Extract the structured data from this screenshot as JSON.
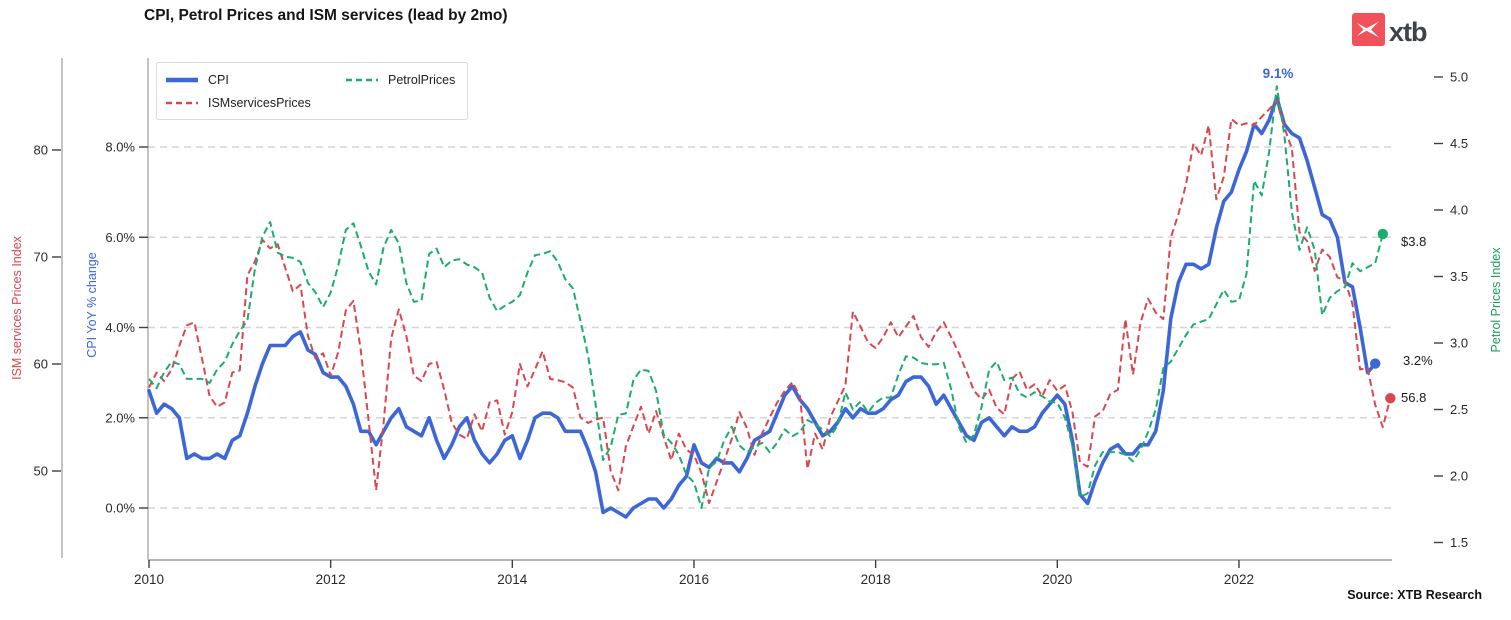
{
  "title": "CPI, Petrol Prices and ISM services (lead by 2mo)",
  "logo": {
    "text": "xtb",
    "icon": "xtb-x-icon",
    "icon_color": "#f0515a",
    "text_color": "#3f424a"
  },
  "source": "Source: XTB Research",
  "legend": {
    "items": [
      {
        "label": "CPI",
        "series": 0
      },
      {
        "label": "PetrolPrices",
        "series": 2
      },
      {
        "label": "ISMservicesPrices",
        "series": 1
      }
    ]
  },
  "annotations": [
    {
      "text": "9.1%",
      "color": "#3d67d6",
      "meaning": "CPI peak Jun 2022"
    },
    {
      "text": "$3.8",
      "color": "#1a1a1a",
      "meaning": "last PetrolPrices value"
    },
    {
      "text": "3.2%",
      "color": "#1a1a1a",
      "meaning": "last CPI value"
    },
    {
      "text": "56.8",
      "color": "#1a1a1a",
      "meaning": "last ISMservicesPrices value"
    }
  ],
  "chart_data": {
    "type": "line",
    "title": "CPI, Petrol Prices and ISM services (lead by 2mo)",
    "grid": "horizontal-dashed",
    "legend_position": "top-left-inside",
    "x_ticks": [
      {
        "label": "2010",
        "value": 2010
      },
      {
        "label": "2012",
        "value": 2012
      },
      {
        "label": "2014",
        "value": 2014
      },
      {
        "label": "2016",
        "value": 2016
      },
      {
        "label": "2018",
        "value": 2018
      },
      {
        "label": "2020",
        "value": 2020
      },
      {
        "label": "2022",
        "value": 2022
      }
    ],
    "x_range": [
      2010.0,
      2023.7
    ],
    "axes": {
      "ism": {
        "title": "ISM services Prices Index",
        "side": "left-outer",
        "color": "#d9474f",
        "ticks": [
          {
            "label": "80",
            "value": 80
          },
          {
            "label": "70",
            "value": 70
          },
          {
            "label": "60",
            "value": 60
          },
          {
            "label": "50",
            "value": 50
          }
        ],
        "range": [
          41.5,
          88.5
        ]
      },
      "cpi": {
        "title": "CPI YoY % change",
        "side": "left-inner",
        "color": "#3d67d6",
        "ticks": [
          {
            "label": "8.0%",
            "value": 8
          },
          {
            "label": "6.0%",
            "value": 6
          },
          {
            "label": "4.0%",
            "value": 4
          },
          {
            "label": "2.0%",
            "value": 2
          },
          {
            "label": "0.0%",
            "value": 0
          }
        ],
        "range": [
          -1.15,
          9.95
        ],
        "gridline_values": [
          0,
          2,
          4,
          6,
          8
        ]
      },
      "petrol": {
        "title": "Petrol Prices Index",
        "side": "right",
        "color": "#1a9e5f",
        "ticks": [
          {
            "label": "5.0",
            "value": 5.0
          },
          {
            "label": "4.5",
            "value": 4.5
          },
          {
            "label": "4.0",
            "value": 4.0
          },
          {
            "label": "3.5",
            "value": 3.5
          },
          {
            "label": "3.0",
            "value": 3.0
          },
          {
            "label": "2.5",
            "value": 2.5
          },
          {
            "label": "2.0",
            "value": 2.0
          },
          {
            "label": "1.5",
            "value": 1.5
          }
        ],
        "range": [
          1.37,
          5.14
        ]
      }
    },
    "series": [
      {
        "name": "CPI",
        "axis": "cpi",
        "color": "#3d67d6",
        "style": "solid",
        "width": 3.6,
        "end_dot": true,
        "start_year": 2010,
        "start_month": 1,
        "step_months": 1,
        "values": [
          2.6,
          2.1,
          2.3,
          2.2,
          2.0,
          1.1,
          1.2,
          1.1,
          1.1,
          1.2,
          1.1,
          1.5,
          1.6,
          2.1,
          2.7,
          3.2,
          3.6,
          3.6,
          3.6,
          3.8,
          3.9,
          3.5,
          3.4,
          3.0,
          2.9,
          2.9,
          2.7,
          2.3,
          1.7,
          1.7,
          1.4,
          1.7,
          2.0,
          2.2,
          1.8,
          1.7,
          1.6,
          2.0,
          1.5,
          1.1,
          1.4,
          1.8,
          2.0,
          1.5,
          1.2,
          1.0,
          1.2,
          1.5,
          1.6,
          1.1,
          1.5,
          2.0,
          2.1,
          2.1,
          2.0,
          1.7,
          1.7,
          1.7,
          1.3,
          0.8,
          -0.1,
          0.0,
          -0.1,
          -0.2,
          0.0,
          0.1,
          0.2,
          0.2,
          0.0,
          0.2,
          0.5,
          0.7,
          1.4,
          1.0,
          0.9,
          1.1,
          1.0,
          1.0,
          0.8,
          1.1,
          1.5,
          1.6,
          1.7,
          2.1,
          2.5,
          2.7,
          2.4,
          2.2,
          1.9,
          1.6,
          1.7,
          1.9,
          2.2,
          2.0,
          2.2,
          2.1,
          2.1,
          2.2,
          2.4,
          2.5,
          2.8,
          2.9,
          2.9,
          2.7,
          2.3,
          2.5,
          2.2,
          1.9,
          1.6,
          1.5,
          1.9,
          2.0,
          1.8,
          1.6,
          1.8,
          1.7,
          1.7,
          1.8,
          2.1,
          2.3,
          2.5,
          2.3,
          1.5,
          0.3,
          0.1,
          0.6,
          1.0,
          1.3,
          1.4,
          1.2,
          1.2,
          1.4,
          1.4,
          1.7,
          2.6,
          4.2,
          5.0,
          5.4,
          5.4,
          5.3,
          5.4,
          6.2,
          6.8,
          7.0,
          7.5,
          7.9,
          8.5,
          8.3,
          8.6,
          9.1,
          8.5,
          8.3,
          8.2,
          7.7,
          7.1,
          6.5,
          6.4,
          6.0,
          5.0,
          4.9,
          4.0,
          3.0,
          3.2
        ]
      },
      {
        "name": "ISMservicesPrices",
        "axis": "ism",
        "color": "#d9474f",
        "style": "dashed",
        "width": 2,
        "lead_months": 2,
        "end_dot": true,
        "start_year": 2010,
        "start_month": 1,
        "step_months": 1,
        "values": [
          57.8,
          59.2,
          58.4,
          59.5,
          61.7,
          63.6,
          63.9,
          60.5,
          57.0,
          56.0,
          56.4,
          59.2,
          59.4,
          68.3,
          69.6,
          71.6,
          70.8,
          71.2,
          69.0,
          66.8,
          67.4,
          62.6,
          60.5,
          61.0,
          58.9,
          61.1,
          65.0,
          65.9,
          61.2,
          54.8,
          48.2,
          54.5,
          62.4,
          65.1,
          62.6,
          58.9,
          58.4,
          60.0,
          60.2,
          57.6,
          54.5,
          53.4,
          53.0,
          55.3,
          53.7,
          56.4,
          56.6,
          53.4,
          55.5,
          60.0,
          57.9,
          59.5,
          61.2,
          58.6,
          58.5,
          58.3,
          57.8,
          55.0,
          54.5,
          54.8,
          55.0,
          50.0,
          48.2,
          52.3,
          54.2,
          56.0,
          53.5,
          55.6,
          53.2,
          51.0,
          53.5,
          52.0,
          51.5,
          49.8,
          47.0,
          49.0,
          51.0,
          53.0,
          55.5,
          54.0,
          51.5,
          53.5,
          55.0,
          56.4,
          57.5,
          58.3,
          57.0,
          50.2,
          53.5,
          52.0,
          55.0,
          56.5,
          58.0,
          64.9,
          63.5,
          62.0,
          61.5,
          62.5,
          63.9,
          62.5,
          63.5,
          64.5,
          62.5,
          61.6,
          63.0,
          63.9,
          62.5,
          61.0,
          59.3,
          57.5,
          56.7,
          57.6,
          55.9,
          55.3,
          58.6,
          59.3,
          57.6,
          58.1,
          57.0,
          58.5,
          57.5,
          58.0,
          55.5,
          50.8,
          50.4,
          55.1,
          55.6,
          57.2,
          57.6,
          64.2,
          59.0,
          63.9,
          66.1,
          64.8,
          64.2,
          71.8,
          74.0,
          76.8,
          80.6,
          79.5,
          82.3,
          75.4,
          77.5,
          82.9,
          82.3,
          82.5,
          82.3,
          83.1,
          83.8,
          84.6,
          82.1,
          80.1,
          72.3,
          71.5,
          68.7,
          70.7,
          70.0,
          68.1,
          67.8,
          65.6,
          59.5,
          59.6,
          56.2,
          54.1,
          56.8
        ]
      },
      {
        "name": "PetrolPrices",
        "axis": "petrol",
        "color": "#1bad6d",
        "style": "dashed",
        "width": 2,
        "end_dot": true,
        "start_year": 2010,
        "start_month": 1,
        "step_months": 1,
        "values": [
          2.73,
          2.66,
          2.78,
          2.86,
          2.84,
          2.73,
          2.73,
          2.73,
          2.7,
          2.8,
          2.86,
          2.99,
          3.09,
          3.17,
          3.56,
          3.8,
          3.91,
          3.68,
          3.65,
          3.64,
          3.61,
          3.45,
          3.38,
          3.27,
          3.38,
          3.58,
          3.85,
          3.9,
          3.73,
          3.54,
          3.44,
          3.72,
          3.85,
          3.75,
          3.45,
          3.31,
          3.32,
          3.67,
          3.71,
          3.57,
          3.62,
          3.63,
          3.59,
          3.57,
          3.53,
          3.34,
          3.24,
          3.28,
          3.31,
          3.36,
          3.53,
          3.66,
          3.67,
          3.69,
          3.61,
          3.48,
          3.41,
          3.17,
          2.91,
          2.54,
          2.12,
          2.22,
          2.46,
          2.47,
          2.72,
          2.8,
          2.79,
          2.64,
          2.31,
          2.25,
          2.16,
          2.01,
          1.95,
          1.76,
          2.06,
          2.11,
          2.27,
          2.37,
          2.23,
          2.18,
          2.22,
          2.25,
          2.18,
          2.25,
          2.35,
          2.3,
          2.33,
          2.42,
          2.39,
          2.35,
          2.3,
          2.38,
          2.63,
          2.5,
          2.56,
          2.48,
          2.55,
          2.59,
          2.59,
          2.76,
          2.9,
          2.89,
          2.85,
          2.84,
          2.84,
          2.85,
          2.65,
          2.37,
          2.25,
          2.31,
          2.52,
          2.8,
          2.86,
          2.72,
          2.74,
          2.62,
          2.59,
          2.63,
          2.6,
          2.56,
          2.55,
          2.44,
          2.23,
          1.84,
          1.87,
          2.08,
          2.18,
          2.18,
          2.18,
          2.16,
          2.11,
          2.2,
          2.33,
          2.5,
          2.81,
          2.86,
          2.96,
          3.06,
          3.14,
          3.16,
          3.18,
          3.29,
          3.4,
          3.31,
          3.32,
          3.52,
          4.22,
          4.11,
          4.44,
          4.93,
          4.56,
          3.98,
          3.7,
          3.87,
          3.7,
          3.21,
          3.34,
          3.39,
          3.42,
          3.6,
          3.54,
          3.57,
          3.6,
          3.82
        ]
      }
    ]
  }
}
